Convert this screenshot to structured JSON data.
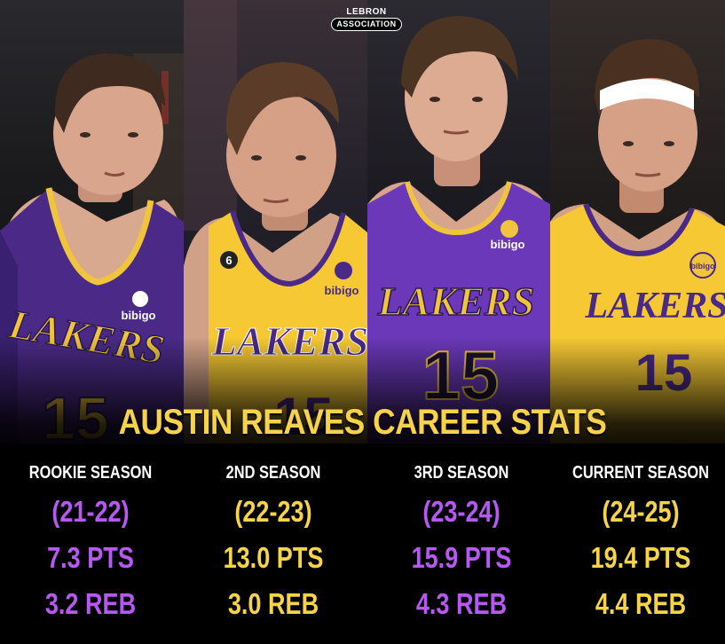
{
  "brand": {
    "line1": "LEBRON",
    "line2": "ASSOCIATION"
  },
  "headline": "AUSTIN REAVES CAREER STATS",
  "jerseys": [
    {
      "team": "LAKERS",
      "number": "15",
      "sponsor": "bibigo",
      "color": "purple"
    },
    {
      "team": "LAKERS",
      "number": "15",
      "sponsor": "bibigo",
      "patch": "6",
      "color": "gold"
    },
    {
      "team": "LAKERS",
      "number": "15",
      "sponsor": "bibigo",
      "color": "purple"
    },
    {
      "team": "LAKERS",
      "number": "15",
      "sponsor": "bibigo",
      "color": "gold"
    }
  ],
  "seasons": [
    {
      "label": "ROOKIE SEASON",
      "years": "(21-22)",
      "pts": "7.3 PTS",
      "reb": "3.2 REB",
      "color": "#b659f0"
    },
    {
      "label": "2ND SEASON",
      "years": "(22-23)",
      "pts": "13.0 PTS",
      "reb": "3.0 REB",
      "color": "#f5d44b"
    },
    {
      "label": "3RD SEASON",
      "years": "(23-24)",
      "pts": "15.9 PTS",
      "reb": "4.3 REB",
      "color": "#b659f0"
    },
    {
      "label": "CURRENT SEASON",
      "years": "(24-25)",
      "pts": "19.4 PTS",
      "reb": "4.4 REB",
      "color": "#f5d44b"
    }
  ],
  "colors": {
    "lakers_purple": "#5a2d91",
    "lakers_gold": "#f8cd3c",
    "stat_purple": "#b659f0",
    "stat_gold": "#f5d44b"
  }
}
